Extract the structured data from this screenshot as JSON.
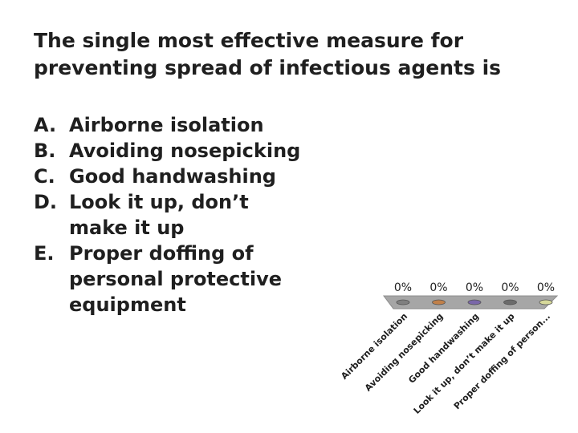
{
  "slide": {
    "title_line1": "The single most effective measure for",
    "title_line2": "preventing spread of infectious agents is"
  },
  "options": [
    {
      "letter": "A.",
      "text": "Airborne isolation"
    },
    {
      "letter": "B.",
      "text": "Avoiding nosepicking"
    },
    {
      "letter": "C.",
      "text": "Good handwashing"
    },
    {
      "letter": "D.",
      "text": "Look it up, don’t make it up"
    },
    {
      "letter": "E.",
      "text": "Proper doffing of personal protective equipment"
    }
  ],
  "chart_data": {
    "type": "bar",
    "title": "",
    "xlabel": "",
    "ylabel": "",
    "ylim": [
      0,
      100
    ],
    "categories": [
      "Airborne isolation",
      "Avoiding nosepicking",
      "Good handwashing",
      "Look it up, don’t make it up",
      "Proper doffing of person..."
    ],
    "values": [
      0,
      0,
      0,
      0,
      0
    ],
    "value_labels": [
      "0%",
      "0%",
      "0%",
      "0%",
      "0%"
    ],
    "colors": [
      "#7f7f7f",
      "#c0804a",
      "#7a67a8",
      "#6b6b6b",
      "#d6d89a"
    ]
  }
}
